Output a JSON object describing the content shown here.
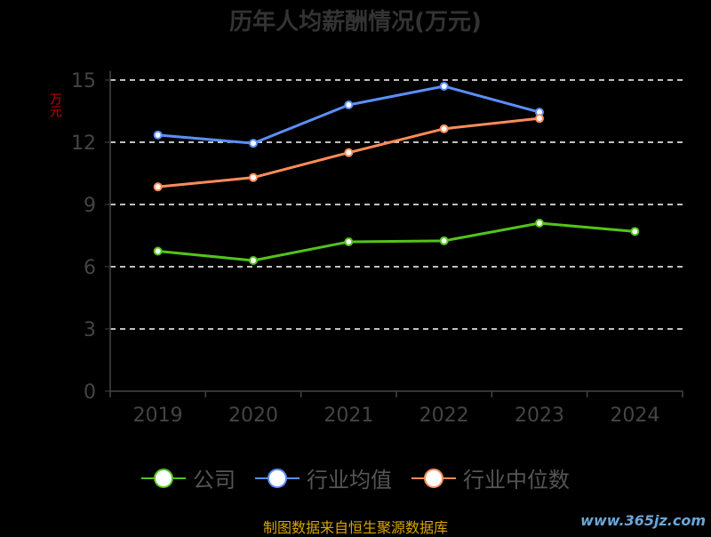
{
  "chart_data": {
    "type": "line",
    "title": "历年人均薪酬情况(万元)",
    "ylabel": "万元",
    "xlabel": "",
    "categories": [
      "2019",
      "2020",
      "2021",
      "2022",
      "2023",
      "2024"
    ],
    "yticks": [
      "0",
      "3",
      "6",
      "9",
      "12",
      "15"
    ],
    "ylim": [
      0,
      15
    ],
    "grid": true,
    "legend_position": "bottom",
    "series": [
      {
        "name": "公司",
        "color": "#52c41a",
        "values": [
          6.75,
          6.3,
          7.2,
          7.25,
          8.1,
          7.7
        ]
      },
      {
        "name": "行业均值",
        "color": "#5b8ff9",
        "values": [
          12.35,
          11.95,
          13.8,
          14.7,
          13.45,
          null
        ]
      },
      {
        "name": "行业中位数",
        "color": "#ff8c5a",
        "values": [
          9.85,
          10.3,
          11.5,
          12.65,
          13.15,
          null
        ]
      }
    ]
  },
  "source_note": "制图数据来自恒生聚源数据库",
  "watermark": "www.365jz.com"
}
